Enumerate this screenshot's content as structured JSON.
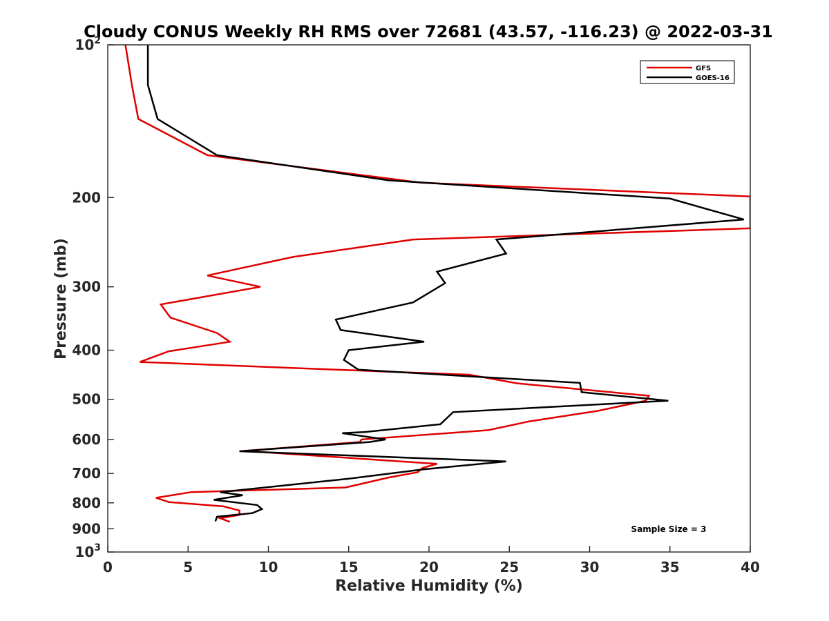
{
  "chart_data": {
    "type": "line",
    "title": "Cloudy CONUS Weekly RH RMS over 72681 (43.57, -116.23) @ 2022-03-31",
    "xlabel": "Relative Humidity (%)",
    "ylabel": "Pressure (mb)",
    "xlim": [
      0,
      40
    ],
    "ylim": [
      100,
      1000
    ],
    "y_scale": "log",
    "y_reversed": true,
    "grid": false,
    "legend_position": "top-right",
    "x_ticks": [
      "0",
      "5",
      "10",
      "15",
      "20",
      "25",
      "30",
      "35",
      "40"
    ],
    "y_ticks": [
      {
        "value": 100,
        "base": "10",
        "exp": "2"
      },
      {
        "value": 200,
        "label": "200"
      },
      {
        "value": 300,
        "label": "300"
      },
      {
        "value": 400,
        "label": "400"
      },
      {
        "value": 500,
        "label": "500"
      },
      {
        "value": 600,
        "label": "600"
      },
      {
        "value": 700,
        "label": "700"
      },
      {
        "value": 800,
        "label": "800"
      },
      {
        "value": 900,
        "label": "900"
      },
      {
        "value": 1000,
        "base": "10",
        "exp": "3"
      }
    ],
    "annotation": "Sample Size = 3",
    "series": [
      {
        "name": "GFS",
        "color": "#e00000",
        "points": [
          [
            1.1,
            100
          ],
          [
            1.5,
            120
          ],
          [
            1.9,
            140
          ],
          [
            6.2,
            165
          ],
          [
            19.5,
            187
          ],
          [
            40.0,
            199
          ],
          [
            40.0,
            230
          ],
          [
            19.0,
            242
          ],
          [
            11.5,
            262
          ],
          [
            6.2,
            285
          ],
          [
            9.5,
            300
          ],
          [
            3.3,
            325
          ],
          [
            3.9,
            345
          ],
          [
            6.8,
            370
          ],
          [
            7.6,
            385
          ],
          [
            3.8,
            402
          ],
          [
            2.0,
            422
          ],
          [
            17.5,
            441
          ],
          [
            22.5,
            447
          ],
          [
            25.5,
            465
          ],
          [
            33.7,
            492
          ],
          [
            33.5,
            503
          ],
          [
            30.5,
            527
          ],
          [
            26.2,
            553
          ],
          [
            23.7,
            575
          ],
          [
            15.8,
            600
          ],
          [
            15.7,
            607
          ],
          [
            8.5,
            632
          ],
          [
            20.5,
            670
          ],
          [
            19.6,
            683
          ],
          [
            19.3,
            696
          ],
          [
            17.5,
            713
          ],
          [
            14.8,
            746
          ],
          [
            5.2,
            762
          ],
          [
            3.0,
            782
          ],
          [
            3.8,
            797
          ],
          [
            7.2,
            813
          ],
          [
            8.2,
            828
          ],
          [
            8.2,
            845
          ],
          [
            7.0,
            858
          ],
          [
            7.6,
            872
          ]
        ]
      },
      {
        "name": "GOES-16",
        "color": "#000000",
        "points": [
          [
            2.5,
            100
          ],
          [
            2.5,
            120
          ],
          [
            3.1,
            140
          ],
          [
            6.8,
            165
          ],
          [
            17.5,
            185
          ],
          [
            35.0,
            201
          ],
          [
            39.6,
            221
          ],
          [
            24.2,
            242
          ],
          [
            24.8,
            258
          ],
          [
            20.5,
            280
          ],
          [
            21.0,
            295
          ],
          [
            19.0,
            322
          ],
          [
            14.2,
            348
          ],
          [
            14.5,
            365
          ],
          [
            19.7,
            385
          ],
          [
            15.0,
            400
          ],
          [
            14.7,
            418
          ],
          [
            15.6,
            437
          ],
          [
            29.4,
            464
          ],
          [
            29.5,
            484
          ],
          [
            34.9,
            503
          ],
          [
            21.5,
            530
          ],
          [
            20.7,
            560
          ],
          [
            16.0,
            580
          ],
          [
            14.6,
            583
          ],
          [
            17.3,
            600
          ],
          [
            16.3,
            607
          ],
          [
            8.2,
            633
          ],
          [
            24.8,
            663
          ],
          [
            19.5,
            688
          ],
          [
            15.0,
            717
          ],
          [
            7.0,
            762
          ],
          [
            8.4,
            773
          ],
          [
            6.6,
            789
          ],
          [
            9.3,
            808
          ],
          [
            9.6,
            823
          ],
          [
            9.0,
            838
          ],
          [
            6.8,
            852
          ],
          [
            6.7,
            870
          ]
        ]
      }
    ]
  }
}
